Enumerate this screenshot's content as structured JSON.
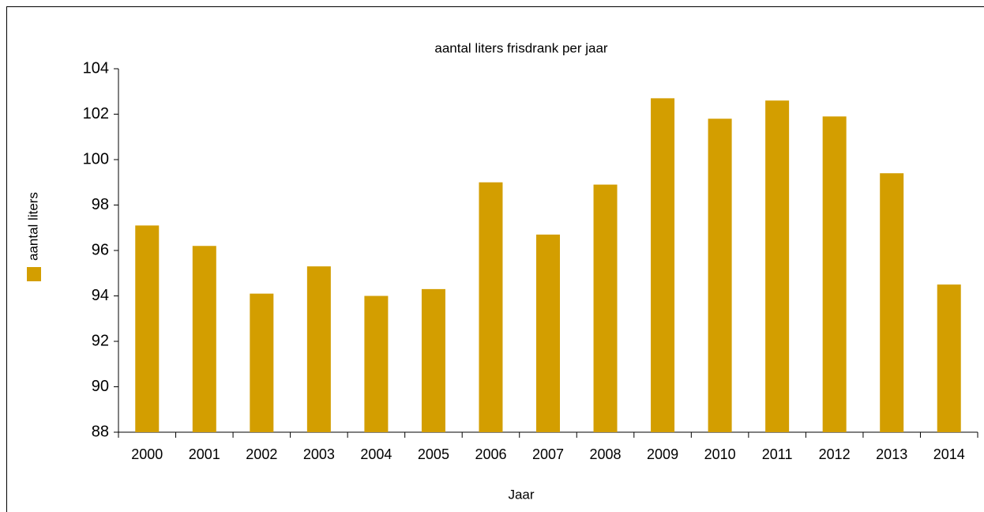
{
  "chart_data": {
    "type": "bar",
    "title": "aantal liters frisdrank per jaar",
    "x_label": "Jaar",
    "categories": [
      "2000",
      "2001",
      "2002",
      "2003",
      "2004",
      "2005",
      "2006",
      "2007",
      "2008",
      "2009",
      "2010",
      "2011",
      "2012",
      "2013",
      "2014"
    ],
    "series": [
      {
        "name": "aantal liters",
        "color": "#d39e00",
        "values": [
          97.1,
          96.2,
          94.1,
          95.3,
          94.0,
          94.3,
          99.0,
          96.7,
          98.9,
          102.7,
          101.8,
          102.6,
          101.9,
          99.4,
          94.5
        ]
      }
    ],
    "ylim": [
      88,
      104
    ],
    "yticks": [
      88,
      90,
      92,
      94,
      96,
      98,
      100,
      102,
      104
    ],
    "legend": "left",
    "grid": false
  }
}
